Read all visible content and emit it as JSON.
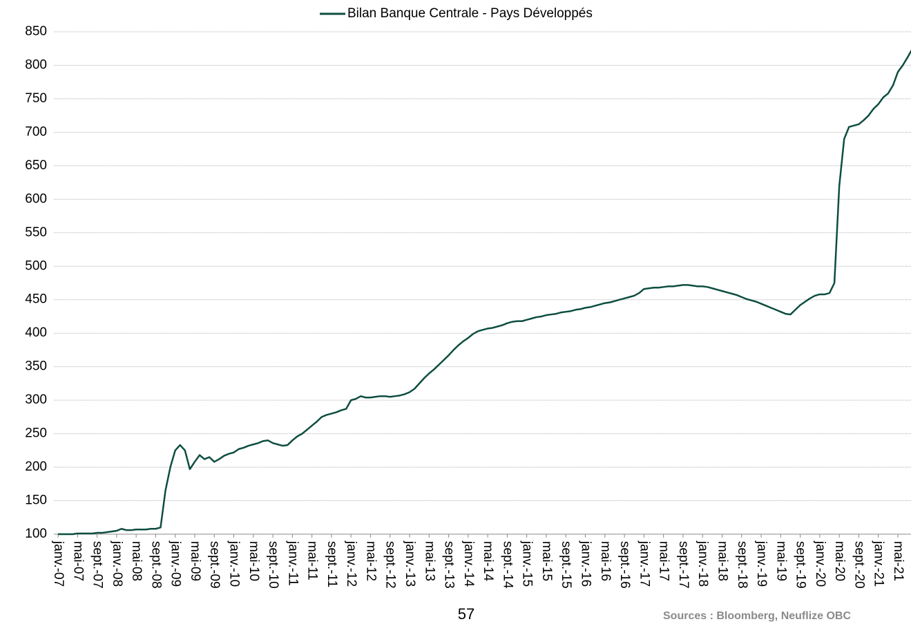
{
  "chart_data": {
    "type": "line",
    "categories": [
      "janv.-07",
      null,
      null,
      null,
      "mai-07",
      null,
      null,
      null,
      "sept.-07",
      null,
      null,
      null,
      "janv.-08",
      null,
      null,
      null,
      "mai-08",
      null,
      null,
      null,
      "sept.-08",
      null,
      null,
      null,
      "janv.-09",
      null,
      null,
      null,
      "mai-09",
      null,
      null,
      null,
      "sept.-09",
      null,
      null,
      null,
      "janv.-10",
      null,
      null,
      null,
      "mai-10",
      null,
      null,
      null,
      "sept.-10",
      null,
      null,
      null,
      "janv.-11",
      null,
      null,
      null,
      "mai-11",
      null,
      null,
      null,
      "sept.-11",
      null,
      null,
      null,
      "janv.-12",
      null,
      null,
      null,
      "mai-12",
      null,
      null,
      null,
      "sept.-12",
      null,
      null,
      null,
      "janv.-13",
      null,
      null,
      null,
      "mai-13",
      null,
      null,
      null,
      "sept.-13",
      null,
      null,
      null,
      "janv.-14",
      null,
      null,
      null,
      "mai-14",
      null,
      null,
      null,
      "sept.-14",
      null,
      null,
      null,
      "janv.-15",
      null,
      null,
      null,
      "mai-15",
      null,
      null,
      null,
      "sept.-15",
      null,
      null,
      null,
      "janv.-16",
      null,
      null,
      null,
      "mai-16",
      null,
      null,
      null,
      "sept.-16",
      null,
      null,
      null,
      "janv.-17",
      null,
      null,
      null,
      "mai-17",
      null,
      null,
      null,
      "sept.-17",
      null,
      null,
      null,
      "janv.-18",
      null,
      null,
      null,
      "mai-18",
      null,
      null,
      null,
      "sept.-18",
      null,
      null,
      null,
      "janv.-19",
      null,
      null,
      null,
      "mai-19",
      null,
      null,
      null,
      "sept.-19",
      null,
      null,
      null,
      "janv.-20",
      null,
      null,
      null,
      "mai-20",
      null,
      null,
      null,
      "sept.-20",
      null,
      null,
      null,
      "janv.-21",
      null,
      null,
      null,
      "mai-21",
      null,
      null,
      null
    ],
    "series": [
      {
        "name": "Bilan Banque Centrale - Pays Développés",
        "color": "#0d4d40",
        "values": [
          100,
          100,
          100,
          100,
          101,
          101,
          101,
          101,
          102,
          102,
          103,
          104,
          105,
          108,
          106,
          106,
          107,
          107,
          107,
          108,
          108,
          110,
          165,
          200,
          225,
          233,
          225,
          197,
          208,
          218,
          212,
          215,
          208,
          212,
          217,
          220,
          222,
          227,
          229,
          232,
          234,
          236,
          239,
          240,
          236,
          234,
          232,
          233,
          240,
          246,
          250,
          256,
          262,
          268,
          275,
          278,
          280,
          282,
          285,
          287,
          300,
          302,
          306,
          304,
          304,
          305,
          306,
          306,
          305,
          306,
          307,
          309,
          312,
          317,
          325,
          333,
          340,
          346,
          353,
          360,
          367,
          375,
          382,
          388,
          393,
          399,
          403,
          405,
          407,
          408,
          410,
          412,
          415,
          417,
          418,
          418,
          420,
          422,
          424,
          425,
          427,
          428,
          429,
          431,
          432,
          433,
          435,
          436,
          438,
          439,
          441,
          443,
          445,
          446,
          448,
          450,
          452,
          454,
          456,
          460,
          466,
          467,
          468,
          468,
          469,
          470,
          470,
          471,
          472,
          472,
          471,
          470,
          470,
          469,
          467,
          465,
          463,
          461,
          459,
          457,
          454,
          451,
          449,
          447,
          444,
          441,
          438,
          435,
          432,
          429,
          428,
          435,
          442,
          447,
          452,
          456,
          458,
          458,
          460,
          475,
          620,
          690,
          708,
          710,
          712,
          718,
          725,
          735,
          742,
          752,
          758,
          770,
          790,
          800,
          812,
          825
        ]
      }
    ],
    "ylim": [
      100,
      850
    ],
    "yticks": [
      100,
      150,
      200,
      250,
      300,
      350,
      400,
      450,
      500,
      550,
      600,
      650,
      700,
      750,
      800,
      850
    ],
    "grid": true,
    "page_number": "57",
    "source": "Sources : Bloomberg, Neuflize OBC"
  }
}
